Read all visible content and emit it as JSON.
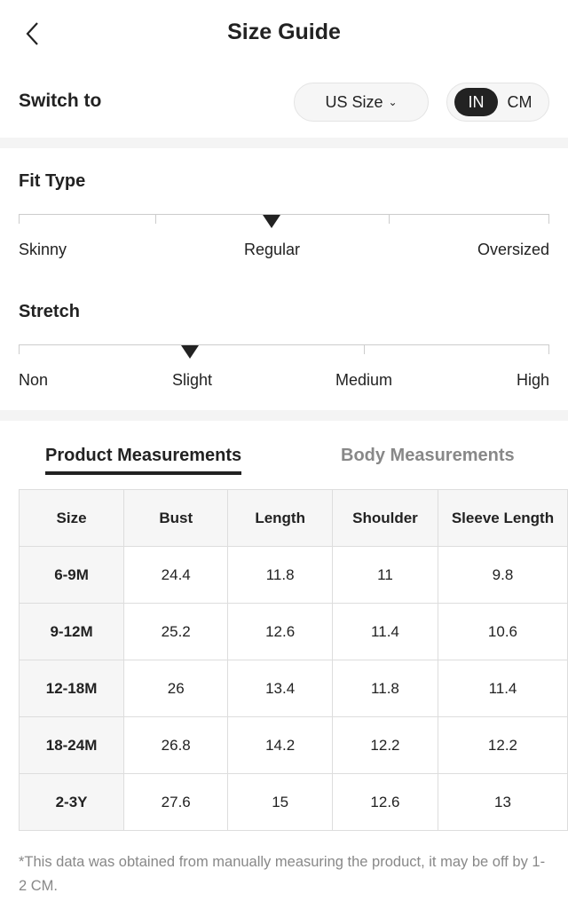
{
  "header": {
    "title": "Size Guide"
  },
  "switch": {
    "label": "Switch to",
    "size_system": "US Size",
    "units": [
      "IN",
      "CM"
    ],
    "selected_unit": "IN"
  },
  "fit": {
    "title": "Fit Type",
    "labels": [
      "Skinny",
      "Regular",
      "Oversized"
    ],
    "selected": "Regular"
  },
  "stretch": {
    "title": "Stretch",
    "labels": [
      "Non",
      "Slight",
      "Medium",
      "High"
    ],
    "selected": "Slight"
  },
  "tabs": {
    "product": "Product Measurements",
    "body": "Body Measurements",
    "active": "product"
  },
  "table": {
    "headers": [
      "Size",
      "Bust",
      "Length",
      "Shoulder",
      "Sleeve Length"
    ],
    "rows": [
      [
        "6-9M",
        "24.4",
        "11.8",
        "11",
        "9.8"
      ],
      [
        "9-12M",
        "25.2",
        "12.6",
        "11.4",
        "10.6"
      ],
      [
        "12-18M",
        "26",
        "13.4",
        "11.8",
        "11.4"
      ],
      [
        "18-24M",
        "26.8",
        "14.2",
        "12.2",
        "12.2"
      ],
      [
        "2-3Y",
        "27.6",
        "15",
        "12.6",
        "13"
      ]
    ]
  },
  "note": "*This data was obtained from manually measuring the product, it may be off by 1-2 CM."
}
